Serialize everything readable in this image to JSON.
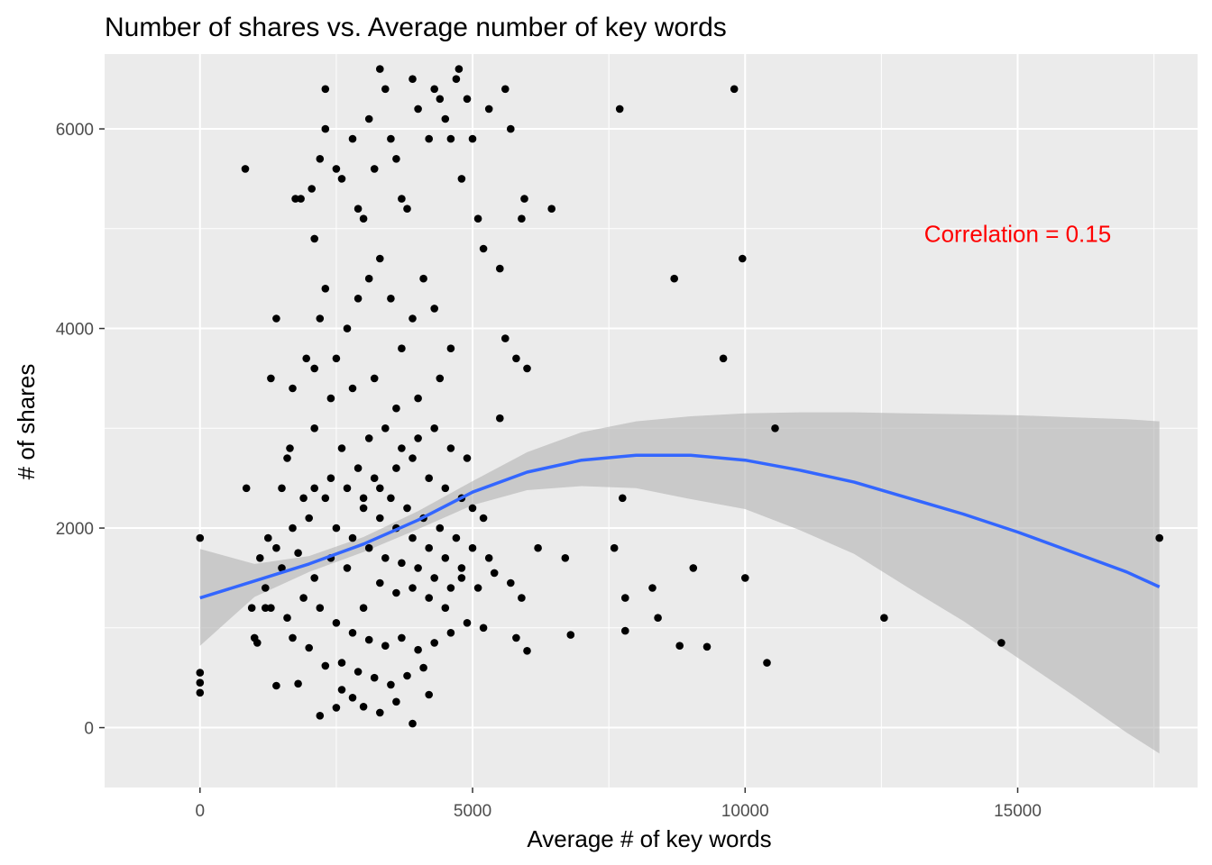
{
  "chart_data": {
    "type": "scatter",
    "title": "Number of shares vs. Average number of key words",
    "xlabel": "Average # of key words",
    "ylabel": "# of shares",
    "xlim": [
      -1750,
      18300
    ],
    "ylim": [
      -600,
      6750
    ],
    "x_ticks": [
      0,
      5000,
      10000,
      15000
    ],
    "x_tick_labels": [
      "0",
      "5000",
      "10000",
      "15000"
    ],
    "y_ticks": [
      0,
      2000,
      4000,
      6000
    ],
    "y_tick_labels": [
      "0",
      "2000",
      "4000",
      "6000"
    ],
    "grid": true,
    "panel_background": "#ebebeb",
    "point_color": "#000000",
    "annotation": {
      "text": "Correlation = 0.15",
      "x": 15000,
      "y": 4950,
      "color": "#ff0000"
    },
    "smooth": {
      "color": "#3366ff",
      "band_color": "#b3b3b3",
      "x": [
        0,
        1000,
        2000,
        3000,
        4000,
        5000,
        6000,
        7000,
        8000,
        9000,
        10000,
        11000,
        12000,
        13000,
        14000,
        15000,
        16000,
        17000,
        17600
      ],
      "y": [
        1300,
        1470,
        1640,
        1840,
        2080,
        2360,
        2560,
        2680,
        2730,
        2730,
        2680,
        2580,
        2460,
        2300,
        2140,
        1960,
        1760,
        1560,
        1410
      ],
      "lower": [
        820,
        1310,
        1560,
        1760,
        1990,
        2230,
        2380,
        2420,
        2400,
        2290,
        2190,
        1980,
        1740,
        1400,
        1070,
        700,
        330,
        -50,
        -260
      ],
      "upper": [
        1790,
        1640,
        1720,
        1910,
        2170,
        2470,
        2760,
        2960,
        3070,
        3120,
        3150,
        3160,
        3160,
        3150,
        3140,
        3130,
        3110,
        3090,
        3070
      ]
    },
    "series": [
      {
        "points": [
          [
            0,
            1900
          ],
          [
            0,
            550
          ],
          [
            0,
            450
          ],
          [
            0,
            350
          ],
          [
            830,
            5600
          ],
          [
            850,
            2400
          ],
          [
            950,
            1200
          ],
          [
            1000,
            900
          ],
          [
            1050,
            850
          ],
          [
            1200,
            1200
          ],
          [
            1250,
            1900
          ],
          [
            1300,
            3500
          ],
          [
            1400,
            4100
          ],
          [
            1500,
            2400
          ],
          [
            1600,
            2700
          ],
          [
            1650,
            2800
          ],
          [
            1700,
            3400
          ],
          [
            1750,
            5300
          ],
          [
            1850,
            5300
          ],
          [
            1950,
            3700
          ],
          [
            2050,
            5400
          ],
          [
            2100,
            4900
          ],
          [
            2200,
            5700
          ],
          [
            2300,
            6400
          ],
          [
            2300,
            6000
          ],
          [
            2500,
            5600
          ],
          [
            2600,
            5500
          ],
          [
            2800,
            5900
          ],
          [
            2900,
            5200
          ],
          [
            3000,
            5100
          ],
          [
            3100,
            6100
          ],
          [
            3200,
            5600
          ],
          [
            3300,
            6600
          ],
          [
            3400,
            6400
          ],
          [
            3500,
            5900
          ],
          [
            3600,
            5700
          ],
          [
            3700,
            5300
          ],
          [
            3800,
            5200
          ],
          [
            3900,
            6500
          ],
          [
            4000,
            6200
          ],
          [
            4200,
            5900
          ],
          [
            4300,
            6400
          ],
          [
            4400,
            6300
          ],
          [
            4500,
            6100
          ],
          [
            4600,
            5900
          ],
          [
            4700,
            6500
          ],
          [
            4750,
            6600
          ],
          [
            4800,
            5500
          ],
          [
            4900,
            6300
          ],
          [
            5000,
            5900
          ],
          [
            5100,
            5100
          ],
          [
            5200,
            4800
          ],
          [
            5300,
            6200
          ],
          [
            5500,
            4600
          ],
          [
            5600,
            6400
          ],
          [
            5700,
            6000
          ],
          [
            5900,
            5100
          ],
          [
            5950,
            5300
          ],
          [
            6450,
            5200
          ],
          [
            7700,
            6200
          ],
          [
            9800,
            6400
          ],
          [
            9950,
            4700
          ],
          [
            8700,
            4500
          ],
          [
            9600,
            3700
          ],
          [
            10550,
            3000
          ],
          [
            6000,
            3600
          ],
          [
            5800,
            3700
          ],
          [
            5600,
            3900
          ],
          [
            5500,
            3100
          ],
          [
            4300,
            4200
          ],
          [
            4100,
            4500
          ],
          [
            3900,
            4100
          ],
          [
            3700,
            3800
          ],
          [
            3500,
            4300
          ],
          [
            3300,
            4700
          ],
          [
            3100,
            4500
          ],
          [
            2900,
            4300
          ],
          [
            2700,
            4000
          ],
          [
            2500,
            3700
          ],
          [
            2300,
            4400
          ],
          [
            2200,
            4100
          ],
          [
            2100,
            3600
          ],
          [
            4600,
            3800
          ],
          [
            4400,
            3500
          ],
          [
            4000,
            3300
          ],
          [
            3600,
            3200
          ],
          [
            3200,
            3500
          ],
          [
            2800,
            3400
          ],
          [
            2400,
            3300
          ],
          [
            2100,
            3000
          ],
          [
            6800,
            930
          ],
          [
            7600,
            1800
          ],
          [
            7800,
            970
          ],
          [
            7800,
            1300
          ],
          [
            7750,
            2300
          ],
          [
            8300,
            1400
          ],
          [
            8400,
            1100
          ],
          [
            8800,
            820
          ],
          [
            9050,
            1600
          ],
          [
            9300,
            810
          ],
          [
            10000,
            1500
          ],
          [
            10400,
            650
          ],
          [
            12550,
            1100
          ],
          [
            14700,
            850
          ],
          [
            17600,
            1900
          ],
          [
            6200,
            1800
          ],
          [
            6700,
            1700
          ],
          [
            5900,
            1300
          ],
          [
            5400,
            1550
          ],
          [
            5700,
            1450
          ],
          [
            6000,
            770
          ],
          [
            5800,
            900
          ],
          [
            5200,
            1000
          ],
          [
            4800,
            1500
          ],
          [
            4500,
            1200
          ],
          [
            4200,
            1300
          ],
          [
            3900,
            1400
          ],
          [
            3600,
            1350
          ],
          [
            3300,
            1450
          ],
          [
            3000,
            1200
          ],
          [
            2700,
            1600
          ],
          [
            2400,
            1700
          ],
          [
            2100,
            1500
          ],
          [
            1800,
            1750
          ],
          [
            1500,
            1600
          ],
          [
            1200,
            1400
          ],
          [
            1100,
            1700
          ],
          [
            1300,
            1200
          ],
          [
            1600,
            1100
          ],
          [
            1900,
            1300
          ],
          [
            2200,
            1200
          ],
          [
            2500,
            1050
          ],
          [
            2800,
            950
          ],
          [
            3100,
            880
          ],
          [
            3400,
            820
          ],
          [
            3700,
            900
          ],
          [
            4000,
            780
          ],
          [
            4300,
            850
          ],
          [
            4600,
            950
          ],
          [
            4900,
            1050
          ],
          [
            2600,
            650
          ],
          [
            2900,
            560
          ],
          [
            3200,
            500
          ],
          [
            3500,
            430
          ],
          [
            3800,
            520
          ],
          [
            4100,
            600
          ],
          [
            2300,
            620
          ],
          [
            2000,
            800
          ],
          [
            1700,
            900
          ],
          [
            3300,
            150
          ],
          [
            3900,
            40
          ],
          [
            2800,
            300
          ],
          [
            2500,
            200
          ],
          [
            2200,
            120
          ],
          [
            4200,
            330
          ],
          [
            3600,
            260
          ],
          [
            3000,
            210
          ],
          [
            1400,
            420
          ],
          [
            1800,
            440
          ],
          [
            2600,
            380
          ],
          [
            2600,
            2800
          ],
          [
            2900,
            2600
          ],
          [
            3200,
            2500
          ],
          [
            3500,
            2300
          ],
          [
            3800,
            2200
          ],
          [
            4100,
            2100
          ],
          [
            4400,
            2000
          ],
          [
            4700,
            1900
          ],
          [
            5000,
            1800
          ],
          [
            5300,
            1700
          ],
          [
            2300,
            2300
          ],
          [
            2000,
            2100
          ],
          [
            1700,
            2000
          ],
          [
            1400,
            1800
          ],
          [
            2500,
            2000
          ],
          [
            2800,
            1900
          ],
          [
            3100,
            1800
          ],
          [
            3400,
            1700
          ],
          [
            3700,
            1650
          ],
          [
            4000,
            1600
          ],
          [
            4300,
            1500
          ],
          [
            4600,
            1400
          ],
          [
            3000,
            2200
          ],
          [
            3300,
            2100
          ],
          [
            3600,
            2000
          ],
          [
            3900,
            1900
          ],
          [
            4200,
            1800
          ],
          [
            4500,
            1700
          ],
          [
            4800,
            1600
          ],
          [
            5100,
            1400
          ],
          [
            2700,
            2400
          ],
          [
            3000,
            2300
          ],
          [
            3300,
            2400
          ],
          [
            3600,
            2600
          ],
          [
            3900,
            2700
          ],
          [
            4200,
            2500
          ],
          [
            4500,
            2400
          ],
          [
            4800,
            2300
          ],
          [
            5000,
            2200
          ],
          [
            5200,
            2100
          ],
          [
            2400,
            2500
          ],
          [
            2100,
            2400
          ],
          [
            1900,
            2300
          ],
          [
            3100,
            2900
          ],
          [
            3400,
            3000
          ],
          [
            3700,
            2800
          ],
          [
            4000,
            2900
          ],
          [
            4300,
            3000
          ],
          [
            4600,
            2800
          ],
          [
            4900,
            2700
          ]
        ]
      }
    ]
  }
}
